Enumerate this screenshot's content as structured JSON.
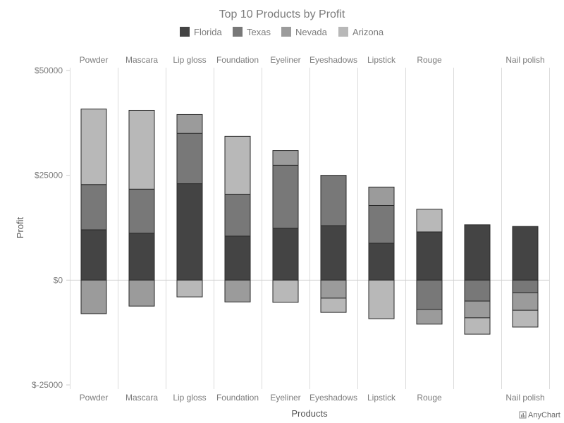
{
  "chart_data": {
    "type": "bar",
    "stacked": true,
    "title": "Top 10 Products by Profit",
    "xlabel": "Products",
    "ylabel": "Profit",
    "ylim": [
      -25000,
      50000
    ],
    "y_ticks": [
      50000,
      25000,
      0,
      -25000
    ],
    "y_tick_labels": [
      "$50000",
      "$25000",
      "$0",
      "$-25000"
    ],
    "grid": "vertical category separators",
    "legend_position": "top-center",
    "categories": [
      "Powder",
      "Mascara",
      "Lip gloss",
      "Foundation",
      "Eyeliner",
      "Eyeshadows",
      "Lipstick",
      "Rouge",
      "",
      "Nail polish"
    ],
    "series": [
      {
        "name": "Florida",
        "color": "#444444",
        "values": [
          12000,
          11200,
          23000,
          10500,
          12400,
          13000,
          8800,
          11500,
          13200,
          12800
        ]
      },
      {
        "name": "Texas",
        "color": "#787878",
        "values": [
          10800,
          10500,
          12000,
          10000,
          15000,
          12000,
          9000,
          -7000,
          -5000,
          -3000
        ]
      },
      {
        "name": "Nevada",
        "color": "#9b9b9b",
        "values": [
          -8000,
          -6200,
          4500,
          -5200,
          3500,
          -4300,
          4400,
          -3500,
          -4000,
          -4200
        ]
      },
      {
        "name": "Arizona",
        "color": "#b8b8b8",
        "values": [
          18000,
          18800,
          -4000,
          13800,
          -5300,
          -3400,
          -9200,
          5400,
          -3900,
          -4000
        ]
      }
    ]
  },
  "credit": {
    "text": "AnyChart",
    "icon": "bar-chart-icon"
  }
}
